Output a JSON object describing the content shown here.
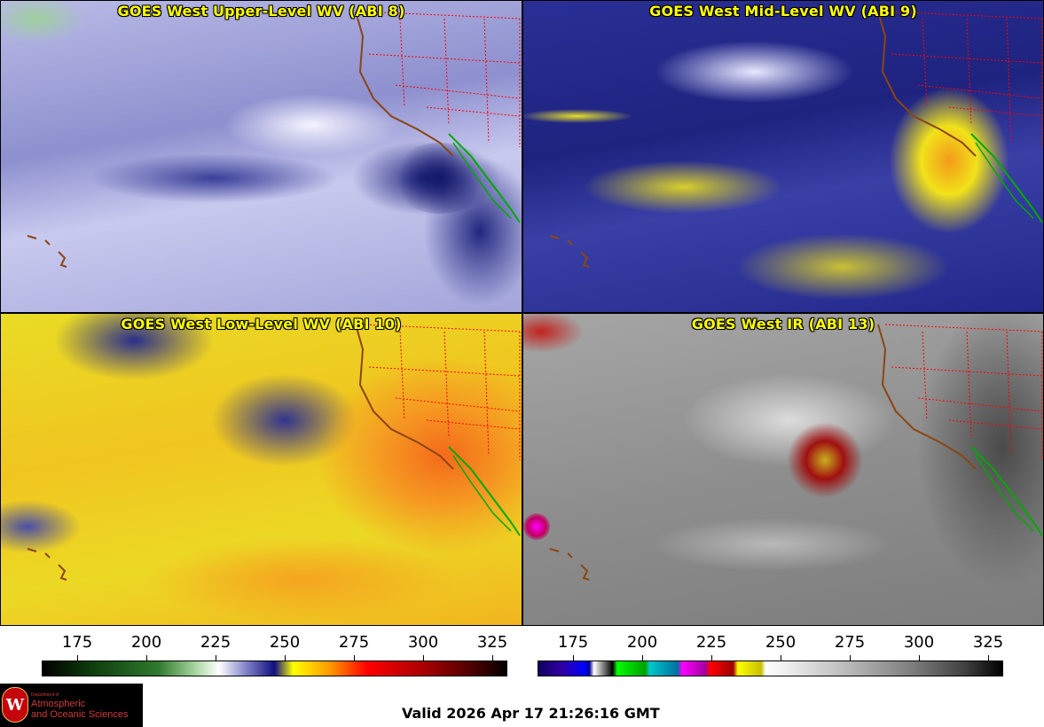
{
  "panels": [
    {
      "title": "GOES West Upper-Level WV (ABI 8)"
    },
    {
      "title": "GOES West Mid-Level WV (ABI 9)"
    },
    {
      "title": "GOES West Low-Level WV (ABI 10)"
    },
    {
      "title": "GOES West IR (ABI 13)"
    }
  ],
  "scales": {
    "wv": {
      "labels": [
        "175",
        "200",
        "225",
        "250",
        "275",
        "300",
        "325"
      ]
    },
    "ir": {
      "labels": [
        "175",
        "200",
        "225",
        "250",
        "275",
        "300",
        "325"
      ]
    }
  },
  "logo": {
    "dept": "Department of",
    "line1": "Atmospheric",
    "line2": "and Oceanic Sciences",
    "seal_letter": "W"
  },
  "valid_time": "Valid 2026 Apr 17 21:26:16 GMT",
  "colors": {
    "title_text": "#ffff00",
    "state_borders": "#ff0000",
    "coastline": "#8b4513",
    "mexico_border": "#00aa00"
  }
}
